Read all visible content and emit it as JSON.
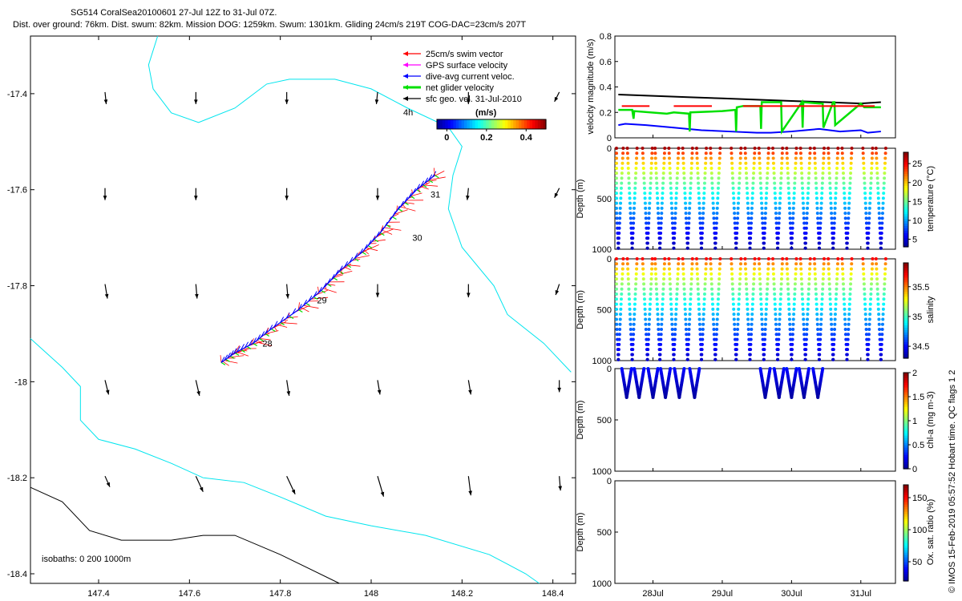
{
  "header": {
    "line1": "SG514 CoralSea20100601 27-Jul 12Z to 31-Jul 07Z.",
    "line2": "Dist. over ground: 76km. Dist. swum: 82km. Mission DOG: 1259km. Swum: 1301km. Gliding 24cm/s 219T COG-DAC=23cm/s 207T"
  },
  "side_note": "© IMOS 15-Feb-2019 05:57:52 Hobart time. QC flags 1  2",
  "colors": {
    "swim": "#ff0000",
    "gps": "#ff00ff",
    "dac": "#0000ff",
    "net": "#00e000",
    "sfc": "#000000",
    "isobath_shallow": "#00e5ee",
    "isobath_deep": "#000000"
  },
  "chart_data": [
    {
      "type": "scatter",
      "name": "map",
      "xlim": [
        147.25,
        148.45
      ],
      "ylim": [
        -18.42,
        -17.28
      ],
      "xticks": [
        147.4,
        147.6,
        147.8,
        148,
        148.2,
        148.4
      ],
      "xtick_labels": [
        "147.4",
        "147.6",
        "147.8",
        "148",
        "148.2",
        "148.4"
      ],
      "yticks": [
        -17.4,
        -17.6,
        -17.8,
        -18,
        -18.2,
        -18.4
      ],
      "ytick_labels": [
        "-17.4",
        "-17.6",
        "-17.8",
        "-18",
        "-18.2",
        "-18.4"
      ],
      "legend": [
        {
          "label": "25cm/s swim vector",
          "color": "#ff0000"
        },
        {
          "label": "GPS surface velocity",
          "color": "#ff00ff"
        },
        {
          "label": "dive-avg current veloc.",
          "color": "#0000ff"
        },
        {
          "label": "net glider velocity",
          "color": "#00e000"
        },
        {
          "label": "sfc geo. vel. 31-Jul-2010",
          "color": "#000000"
        }
      ],
      "colorbar": {
        "label": "(m/s)",
        "note": "4h",
        "ticks": [
          0,
          0.2,
          0.4
        ],
        "tick_labels": [
          "0",
          "0.2",
          "0.4"
        ],
        "range": [
          -0.05,
          0.5
        ]
      },
      "isobath_label": "isobaths: 0   200  1000m",
      "track": [
        {
          "lon": 147.67,
          "lat": -17.96
        },
        {
          "lon": 147.7,
          "lat": -17.94
        },
        {
          "lon": 147.74,
          "lat": -17.92
        },
        {
          "lon": 147.78,
          "lat": -17.89
        },
        {
          "lon": 147.84,
          "lat": -17.85
        },
        {
          "lon": 147.89,
          "lat": -17.81
        },
        {
          "lon": 147.93,
          "lat": -17.77
        },
        {
          "lon": 147.98,
          "lat": -17.73
        },
        {
          "lon": 148.02,
          "lat": -17.69
        },
        {
          "lon": 148.06,
          "lat": -17.64
        },
        {
          "lon": 148.1,
          "lat": -17.6
        },
        {
          "lon": 148.14,
          "lat": -17.57
        }
      ],
      "day_labels": [
        {
          "label": "28",
          "lon": 147.75,
          "lat": -17.92
        },
        {
          "label": "29",
          "lon": 147.87,
          "lat": -17.83
        },
        {
          "label": "30",
          "lon": 148.08,
          "lat": -17.7
        },
        {
          "label": "31",
          "lon": 148.12,
          "lat": -17.61
        }
      ],
      "vector_field": {
        "lons": [
          147.4,
          147.6,
          147.8,
          148.0,
          148.2,
          148.4
        ],
        "lats": [
          -17.4,
          -17.6,
          -17.8,
          -18.0,
          -18.2
        ],
        "u": [
          [
            0.01,
            0.0,
            0.0,
            -0.01,
            0.0,
            -0.04
          ],
          [
            0.0,
            0.0,
            0.0,
            0.0,
            -0.01,
            -0.04
          ],
          [
            0.02,
            0.01,
            0.01,
            0.0,
            0.0,
            -0.03
          ],
          [
            0.03,
            0.03,
            0.02,
            0.02,
            0.02,
            0.0
          ],
          [
            0.04,
            0.06,
            0.07,
            0.05,
            0.02,
            0.01
          ]
        ],
        "v": [
          [
            -0.1,
            -0.1,
            -0.1,
            -0.1,
            -0.1,
            -0.08
          ],
          [
            -0.1,
            -0.1,
            -0.1,
            -0.1,
            -0.1,
            -0.08
          ],
          [
            -0.12,
            -0.12,
            -0.12,
            -0.11,
            -0.11,
            -0.09
          ],
          [
            -0.12,
            -0.13,
            -0.13,
            -0.12,
            -0.12,
            -0.1
          ],
          [
            -0.09,
            -0.13,
            -0.15,
            -0.17,
            -0.16,
            -0.12
          ]
        ]
      },
      "isobath_0": [
        {
          "lon": 147.53,
          "lat": -17.28
        },
        {
          "lon": 147.51,
          "lat": -17.34
        },
        {
          "lon": 147.52,
          "lat": -17.39
        },
        {
          "lon": 147.56,
          "lat": -17.44
        },
        {
          "lon": 147.62,
          "lat": -17.46
        },
        {
          "lon": 147.7,
          "lat": -17.43
        },
        {
          "lon": 147.77,
          "lat": -17.38
        },
        {
          "lon": 147.82,
          "lat": -17.37
        },
        {
          "lon": 147.92,
          "lat": -17.37
        },
        {
          "lon": 148.0,
          "lat": -17.39
        },
        {
          "lon": 148.08,
          "lat": -17.43
        },
        {
          "lon": 148.17,
          "lat": -17.47
        },
        {
          "lon": 148.2,
          "lat": -17.51
        },
        {
          "lon": 148.18,
          "lat": -17.57
        },
        {
          "lon": 148.17,
          "lat": -17.64
        },
        {
          "lon": 148.2,
          "lat": -17.72
        },
        {
          "lon": 148.27,
          "lat": -17.8
        },
        {
          "lon": 148.3,
          "lat": -17.86
        },
        {
          "lon": 148.38,
          "lat": -17.92
        },
        {
          "lon": 148.44,
          "lat": -17.98
        }
      ],
      "isobath_200": [
        {
          "lon": 147.25,
          "lat": -17.91
        },
        {
          "lon": 147.32,
          "lat": -17.97
        },
        {
          "lon": 147.36,
          "lat": -18.01
        },
        {
          "lon": 147.36,
          "lat": -18.08
        },
        {
          "lon": 147.4,
          "lat": -18.12
        },
        {
          "lon": 147.48,
          "lat": -18.14
        },
        {
          "lon": 147.56,
          "lat": -18.17
        },
        {
          "lon": 147.63,
          "lat": -18.2
        },
        {
          "lon": 147.72,
          "lat": -18.21
        },
        {
          "lon": 147.8,
          "lat": -18.24
        },
        {
          "lon": 147.9,
          "lat": -18.28
        },
        {
          "lon": 148.0,
          "lat": -18.3
        },
        {
          "lon": 148.12,
          "lat": -18.32
        },
        {
          "lon": 148.26,
          "lat": -18.36
        },
        {
          "lon": 148.34,
          "lat": -18.4
        },
        {
          "lon": 148.37,
          "lat": -18.42
        }
      ],
      "isobath_1000": [
        {
          "lon": 147.25,
          "lat": -18.22
        },
        {
          "lon": 147.32,
          "lat": -18.25
        },
        {
          "lon": 147.38,
          "lat": -18.31
        },
        {
          "lon": 147.45,
          "lat": -18.33
        },
        {
          "lon": 147.56,
          "lat": -18.33
        },
        {
          "lon": 147.63,
          "lat": -18.32
        },
        {
          "lon": 147.7,
          "lat": -18.32
        },
        {
          "lon": 147.8,
          "lat": -18.36
        },
        {
          "lon": 147.93,
          "lat": -18.42
        }
      ]
    },
    {
      "type": "line",
      "name": "velocity",
      "ylabel": "velocity magnitude (m/s)",
      "ylim": [
        0,
        0.8
      ],
      "yticks": [
        0,
        0.2,
        0.4,
        0.6,
        0.8
      ],
      "ytick_labels": [
        "0",
        "0.2",
        "0.4",
        "0.6",
        "0.8"
      ],
      "series": [
        {
          "color": "#000000",
          "x": [
            27.5,
            28.0,
            28.5,
            29.0,
            29.5,
            30.0,
            30.5,
            31.0,
            31.29
          ],
          "y": [
            0.34,
            0.33,
            0.32,
            0.31,
            0.3,
            0.29,
            0.28,
            0.27,
            0.28
          ]
        },
        {
          "color": "#0000ff",
          "x": [
            27.5,
            27.6,
            27.9,
            28.3,
            28.7,
            29.1,
            29.5,
            29.7,
            30.0,
            30.2,
            30.4,
            30.7,
            31.0,
            31.1,
            31.29
          ],
          "y": [
            0.1,
            0.11,
            0.1,
            0.08,
            0.06,
            0.05,
            0.04,
            0.04,
            0.05,
            0.06,
            0.07,
            0.05,
            0.06,
            0.04,
            0.05
          ]
        },
        {
          "color": "#00e000",
          "x": [
            27.5,
            27.7,
            27.72,
            27.73,
            28.2,
            28.3,
            28.52,
            28.53,
            28.54,
            29.0,
            29.19,
            29.2,
            29.21,
            29.3,
            29.55,
            29.56,
            29.57,
            29.8,
            29.85,
            29.86,
            30.15,
            30.16,
            30.17,
            30.4,
            30.45,
            30.46,
            30.6,
            30.62,
            30.63,
            31.0,
            31.05,
            31.29
          ],
          "y": [
            0.22,
            0.22,
            0.15,
            0.21,
            0.19,
            0.2,
            0.19,
            0.05,
            0.2,
            0.21,
            0.22,
            0.05,
            0.24,
            0.25,
            0.25,
            0.07,
            0.28,
            0.28,
            0.28,
            0.05,
            0.28,
            0.08,
            0.28,
            0.27,
            0.27,
            0.08,
            0.28,
            0.28,
            0.1,
            0.27,
            0.24,
            0.24
          ]
        },
        {
          "color": "#ff0000",
          "x": [
            27.55,
            27.95,
            null,
            28.3,
            28.85,
            null,
            29.3,
            31.2
          ],
          "y": [
            0.25,
            0.25,
            null,
            0.25,
            0.25,
            null,
            0.25,
            0.25
          ]
        }
      ]
    },
    {
      "type": "scatter",
      "name": "temperature",
      "ylabel": "Depth (m)",
      "ylim": [
        1000,
        0
      ],
      "yticks": [
        0,
        500,
        1000
      ],
      "ytick_labels": [
        "0",
        "500",
        "1000"
      ],
      "colorbar": {
        "label": "temperature (°C)",
        "ticks": [
          5,
          10,
          15,
          20,
          25
        ],
        "tick_labels": [
          "5",
          "10",
          "15",
          "20",
          "25"
        ],
        "range": [
          3,
          28
        ]
      },
      "dive_times": [
        27.5,
        27.7,
        27.92,
        28.1,
        28.3,
        28.5,
        28.7,
        28.9,
        29.2,
        29.4,
        29.6,
        29.8,
        30.0,
        30.2,
        30.4,
        30.6,
        30.8,
        31.1,
        31.29
      ],
      "surface_value": 27,
      "bottom_value": 4,
      "max_depth": 990
    },
    {
      "type": "scatter",
      "name": "salinity",
      "ylabel": "Depth (m)",
      "ylim": [
        1000,
        0
      ],
      "yticks": [
        0,
        500,
        1000
      ],
      "ytick_labels": [
        "0",
        "500",
        "1000"
      ],
      "colorbar": {
        "label": "salinity",
        "ticks": [
          34.5,
          35,
          35.5
        ],
        "tick_labels": [
          "34.5",
          "35",
          "35.5"
        ],
        "range": [
          34.3,
          35.9
        ]
      },
      "dive_times": [
        27.5,
        27.7,
        27.92,
        28.1,
        28.3,
        28.5,
        28.7,
        28.9,
        29.2,
        29.4,
        29.6,
        29.8,
        30.0,
        30.2,
        30.4,
        30.6,
        30.8,
        31.1,
        31.29
      ],
      "surface_value": 35.7,
      "bottom_value": 34.4,
      "max_depth": 990
    },
    {
      "type": "scatter",
      "name": "chlorophyll",
      "ylabel": "Depth (m)",
      "ylim": [
        1000,
        0
      ],
      "yticks": [
        0,
        500,
        1000
      ],
      "ytick_labels": [
        "0",
        "500",
        "1000"
      ],
      "colorbar": {
        "label": "chl-a (mg m-3)",
        "ticks": [
          0,
          0.5,
          1,
          1.5,
          2
        ],
        "tick_labels": [
          "0",
          "0.5",
          "1",
          "1.5",
          "2"
        ],
        "range": [
          0,
          2
        ]
      },
      "dive_times": [
        27.62,
        27.8,
        28.0,
        28.18,
        28.38,
        28.6,
        29.62,
        29.82,
        30.0,
        30.18,
        30.38
      ],
      "surface_value": 0.3,
      "bottom_value": 0.05,
      "max_depth": 280
    },
    {
      "type": "scatter",
      "name": "oxygen",
      "ylabel": "Depth (m)",
      "ylim": [
        1000,
        0
      ],
      "yticks": [
        0,
        500,
        1000
      ],
      "ytick_labels": [
        "0",
        "500",
        "1000"
      ],
      "colorbar": {
        "label": "Ox. sat. ratio (%)",
        "ticks": [
          50,
          100,
          150
        ],
        "tick_labels": [
          "50",
          "100",
          "150"
        ],
        "range": [
          20,
          170
        ]
      },
      "dive_times": []
    }
  ],
  "time_axis": {
    "xlim": [
      27.45,
      31.5
    ],
    "ticks": [
      28,
      29,
      30,
      31
    ],
    "tick_labels": [
      "28Jul",
      "29Jul",
      "30Jul",
      "31Jul"
    ]
  }
}
